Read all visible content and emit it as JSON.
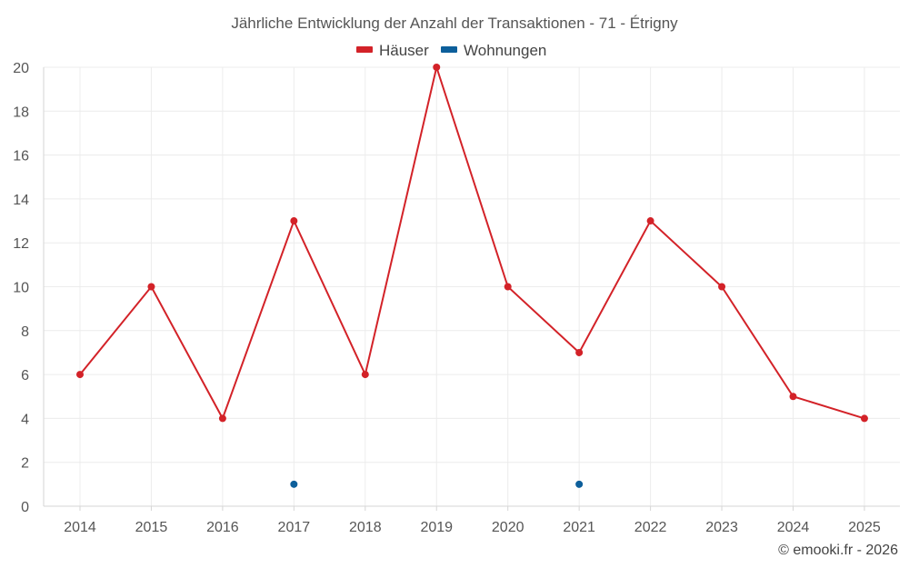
{
  "chart_data": {
    "type": "line",
    "title": "Jährliche Entwicklung der Anzahl der Transaktionen - 71 - Étrigny",
    "xlabel": "",
    "ylabel": "",
    "categories": [
      "2014",
      "2015",
      "2016",
      "2017",
      "2018",
      "2019",
      "2020",
      "2021",
      "2022",
      "2023",
      "2024",
      "2025"
    ],
    "ylim": [
      0,
      20
    ],
    "yticks": [
      0,
      2,
      4,
      6,
      8,
      10,
      12,
      14,
      16,
      18,
      20
    ],
    "grid": true,
    "legend_position": "top-center",
    "series": [
      {
        "name": "Häuser",
        "color": "#d32228",
        "values": [
          6,
          10,
          4,
          13,
          6,
          20,
          10,
          7,
          13,
          10,
          5,
          4
        ]
      },
      {
        "name": "Wohnungen",
        "color": "#0d5f9b",
        "values": [
          null,
          null,
          null,
          1,
          null,
          null,
          null,
          1,
          null,
          null,
          null,
          null
        ]
      }
    ]
  },
  "credit": "© emooki.fr - 2026"
}
